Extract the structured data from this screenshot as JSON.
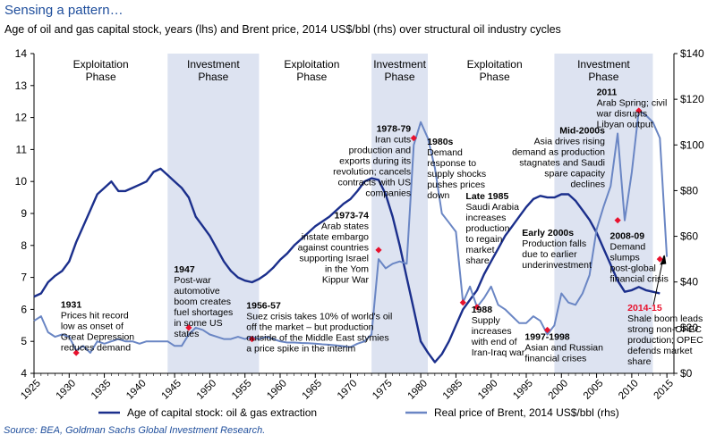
{
  "header": {
    "title": "Sensing a pattern…",
    "subtitle": "Age of oil and gas capital stock, years (lhs) and Brent price, 2014 US$/bbl (rhs) over structural oil industry cycles"
  },
  "footer": {
    "source": "Source: BEA, Goldman Sachs Global Investment Research."
  },
  "colors": {
    "capital_stock": "#1b2f8c",
    "brent": "#6a86c4",
    "investment_band": "#dde3f1",
    "marker": "#e8112d",
    "highlight_label": "#e8112d"
  },
  "chart_data": {
    "type": "line",
    "xlim": [
      1925,
      2016
    ],
    "ylim_left": [
      4,
      14
    ],
    "ylim_right": [
      0,
      140
    ],
    "x_ticks": [
      "1925",
      "1930",
      "1935",
      "1940",
      "1945",
      "1950",
      "1955",
      "1960",
      "1965",
      "1970",
      "1975",
      "1980",
      "1985",
      "1990",
      "1995",
      "2000",
      "2005",
      "2010",
      "2015"
    ],
    "y_ticks_left": [
      "4",
      "5",
      "6",
      "7",
      "8",
      "9",
      "10",
      "11",
      "12",
      "13",
      "14"
    ],
    "y_ticks_right": [
      "$0",
      "$20",
      "$40",
      "$60",
      "$80",
      "$100",
      "$120",
      "$140"
    ],
    "grid": false,
    "phases": [
      {
        "label": "Exploitation Phase",
        "start": 1925,
        "end": 1944,
        "shaded": false,
        "label_x": 1934.5
      },
      {
        "label": "Investment Phase",
        "start": 1944,
        "end": 1957,
        "shaded": true,
        "label_x": 1950.5
      },
      {
        "label": "Exploitation Phase",
        "start": 1957,
        "end": 1973,
        "shaded": false,
        "label_x": 1964.5
      },
      {
        "label": "Investment Phase",
        "start": 1973,
        "end": 1981,
        "shaded": true,
        "label_x": 1977
      },
      {
        "label": "Exploitation Phase",
        "start": 1981,
        "end": 1999,
        "shaded": false,
        "label_x": 1990.5
      },
      {
        "label": "Investment Phase",
        "start": 1999,
        "end": 2013,
        "shaded": true,
        "label_x": 2006
      }
    ],
    "series": [
      {
        "name": "Age of capital stock: oil & gas extraction",
        "axis": "left",
        "x": [
          1925,
          1926,
          1927,
          1928,
          1929,
          1930,
          1931,
          1932,
          1933,
          1934,
          1935,
          1936,
          1937,
          1938,
          1939,
          1940,
          1941,
          1942,
          1943,
          1944,
          1945,
          1946,
          1947,
          1948,
          1949,
          1950,
          1951,
          1952,
          1953,
          1954,
          1955,
          1956,
          1957,
          1958,
          1959,
          1960,
          1961,
          1962,
          1963,
          1964,
          1965,
          1966,
          1967,
          1968,
          1969,
          1970,
          1971,
          1972,
          1973,
          1974,
          1975,
          1976,
          1977,
          1978,
          1979,
          1980,
          1981,
          1982,
          1983,
          1984,
          1985,
          1986,
          1987,
          1988,
          1989,
          1990,
          1991,
          1992,
          1993,
          1994,
          1995,
          1996,
          1997,
          1998,
          1999,
          2000,
          2001,
          2002,
          2003,
          2004,
          2005,
          2006,
          2007,
          2008,
          2009,
          2010,
          2011,
          2012,
          2013,
          2014
        ],
        "y": [
          6.4,
          6.5,
          6.85,
          7.05,
          7.2,
          7.5,
          8.1,
          8.6,
          9.1,
          9.6,
          9.8,
          10.0,
          9.7,
          9.7,
          9.8,
          9.9,
          10.0,
          10.3,
          10.4,
          10.2,
          10.0,
          9.8,
          9.5,
          8.9,
          8.6,
          8.3,
          7.9,
          7.5,
          7.2,
          7.0,
          6.9,
          6.85,
          6.95,
          7.1,
          7.3,
          7.55,
          7.75,
          8.0,
          8.2,
          8.4,
          8.6,
          8.75,
          8.9,
          9.1,
          9.3,
          9.45,
          9.7,
          10.0,
          10.1,
          10.05,
          9.6,
          8.9,
          8.0,
          7.0,
          6.0,
          5.0,
          4.65,
          4.35,
          4.6,
          5.0,
          5.5,
          6.0,
          6.3,
          6.6,
          7.1,
          7.5,
          7.9,
          8.3,
          8.6,
          8.9,
          9.2,
          9.45,
          9.55,
          9.5,
          9.5,
          9.6,
          9.6,
          9.4,
          9.1,
          8.8,
          8.4,
          7.9,
          7.4,
          6.9,
          6.55,
          6.6,
          6.7,
          6.6,
          6.55,
          6.5
        ]
      },
      {
        "name": "Real price of Brent, 2014 US$/bbl (rhs)",
        "axis": "right",
        "x": [
          1925,
          1926,
          1927,
          1928,
          1929,
          1930,
          1931,
          1932,
          1933,
          1934,
          1935,
          1936,
          1937,
          1938,
          1939,
          1940,
          1941,
          1942,
          1943,
          1944,
          1945,
          1946,
          1947,
          1948,
          1949,
          1950,
          1951,
          1952,
          1953,
          1954,
          1955,
          1956,
          1957,
          1958,
          1959,
          1960,
          1961,
          1962,
          1963,
          1964,
          1965,
          1966,
          1967,
          1968,
          1969,
          1970,
          1971,
          1972,
          1973,
          1974,
          1975,
          1976,
          1977,
          1978,
          1979,
          1980,
          1981,
          1982,
          1983,
          1984,
          1985,
          1986,
          1987,
          1988,
          1989,
          1990,
          1991,
          1992,
          1993,
          1994,
          1995,
          1996,
          1997,
          1998,
          1999,
          2000,
          2001,
          2002,
          2003,
          2004,
          2005,
          2006,
          2007,
          2008,
          2009,
          2010,
          2011,
          2012,
          2013,
          2014,
          2015
        ],
        "y": [
          23,
          25,
          18,
          16,
          17,
          16,
          10,
          12,
          9,
          14,
          13,
          14,
          15,
          14,
          14,
          13,
          14,
          14,
          14,
          14,
          12,
          12,
          17,
          20,
          19,
          17,
          16,
          15,
          15,
          16,
          15,
          16,
          15,
          16,
          15,
          14,
          13.5,
          13.5,
          13.3,
          13.2,
          13,
          12.7,
          12.5,
          12.2,
          11.9,
          11.5,
          13,
          14,
          17,
          50,
          46,
          48,
          49,
          48,
          100,
          110,
          103,
          90,
          70,
          66,
          62,
          31,
          38,
          29,
          33,
          38,
          30,
          28,
          25,
          22,
          22,
          25,
          23,
          17,
          21,
          35,
          31,
          30,
          35,
          43,
          63,
          73,
          82,
          105,
          67,
          88,
          115,
          113,
          110,
          103,
          51
        ]
      }
    ],
    "markers": [
      {
        "x": 1931,
        "y_right": 9
      },
      {
        "x": 1947,
        "y_right": 20
      },
      {
        "x": 1956,
        "y_right": 15
      },
      {
        "x": 1974,
        "y_right": 54
      },
      {
        "x": 1979,
        "y_right": 103
      },
      {
        "x": 1986,
        "y_right": 31
      },
      {
        "x": 1988,
        "y_right": 29
      },
      {
        "x": 1998,
        "y_right": 19
      },
      {
        "x": 2008,
        "y_right": 67
      },
      {
        "x": 2011,
        "y_right": 115
      },
      {
        "x": 2014,
        "y_right": 50
      }
    ],
    "annotations": [
      {
        "x": 1928.8,
        "y_left": 6.05,
        "anchor": "start",
        "lines": [
          "1931",
          "Prices hit record",
          "low as onset of",
          "Great Depression",
          "reduces demand"
        ],
        "bold_first": true
      },
      {
        "x": 1944.9,
        "y_left": 7.15,
        "anchor": "start",
        "lines": [
          "1947",
          "Post-war",
          "automotive",
          "boom creates",
          "fuel shortages",
          "in some US",
          "states"
        ],
        "bold_first": true
      },
      {
        "x": 1955.2,
        "y_left": 6.03,
        "anchor": "start",
        "lines": [
          "1956-57",
          "Suez crisis takes 10% of world's oil",
          "off the market – but production",
          "outside of the Middle East stymies",
          "a price spike in the interim"
        ],
        "bold_first": true
      },
      {
        "x": 1972.6,
        "y_left": 8.85,
        "anchor": "end",
        "lines": [
          "1973-74",
          "Arab states",
          "instate embargo",
          "against countries",
          "supporting Israel",
          "in the Yom",
          "Kippur War"
        ],
        "bold_first": true
      },
      {
        "x": 1978.6,
        "y_left": 11.55,
        "anchor": "end",
        "lines": [
          "1978-79",
          "Iran cuts",
          "production and",
          "exports during its",
          "revolution; cancels",
          "contracts with US",
          "companies"
        ],
        "bold_first": true
      },
      {
        "x": 1980.9,
        "y_left": 11.15,
        "anchor": "start",
        "lines": [
          "1980s",
          "Demand",
          "response to",
          "supply shocks",
          "pushes prices",
          "down"
        ],
        "bold_first": true
      },
      {
        "x": 1986.4,
        "y_left": 9.45,
        "anchor": "start",
        "lines": [
          "Late 1985",
          "Saudi Arabia",
          "increases",
          "production",
          "to regain",
          "market",
          "share"
        ],
        "bold_first": true
      },
      {
        "x": 1987.2,
        "y_left": 5.9,
        "anchor": "start",
        "lines": [
          "1988",
          "Supply",
          "increases",
          "with end of",
          "Iran-Iraq war"
        ],
        "bold_first": true
      },
      {
        "x": 1994.8,
        "y_left": 5.05,
        "anchor": "start",
        "lines": [
          "1997-1998",
          "Asian and Russian",
          "financial crises"
        ],
        "bold_first": true
      },
      {
        "x": 1994.4,
        "y_left": 8.3,
        "anchor": "start",
        "lines": [
          "Early 2000s",
          "Production falls",
          "due to earlier",
          "underinvestment"
        ],
        "bold_first": true
      },
      {
        "x": 2006.2,
        "y_left": 11.5,
        "anchor": "end",
        "lines": [
          "Mid-2000s",
          "Asia drives rising",
          "demand as production",
          "stagnates and Saudi",
          "spare capacity",
          "declines"
        ],
        "bold_first": true
      },
      {
        "x": 2006.9,
        "y_left": 8.2,
        "anchor": "start",
        "lines": [
          "2008-09",
          "Demand",
          "slumps",
          "post-global",
          "financial crisis"
        ],
        "bold_first": true
      },
      {
        "x": 2005.0,
        "y_left": 12.7,
        "anchor": "start",
        "lines": [
          "2011",
          "Arab Spring; civil",
          "war disrupts",
          "Libyan output"
        ],
        "bold_first": true
      },
      {
        "x": 2009.4,
        "y_left": 5.95,
        "anchor": "start",
        "lines": [
          "2014-15",
          "Shale boom leads",
          "strong non-OPEC",
          "production; OPEC",
          "defends market",
          "share"
        ],
        "bold_first": true,
        "first_red": true
      }
    ],
    "legend": {
      "placement": "bottom",
      "entries": [
        "Age of capital stock: oil & gas extraction",
        "Real price of Brent, 2014 US$/bbl (rhs)"
      ]
    }
  }
}
